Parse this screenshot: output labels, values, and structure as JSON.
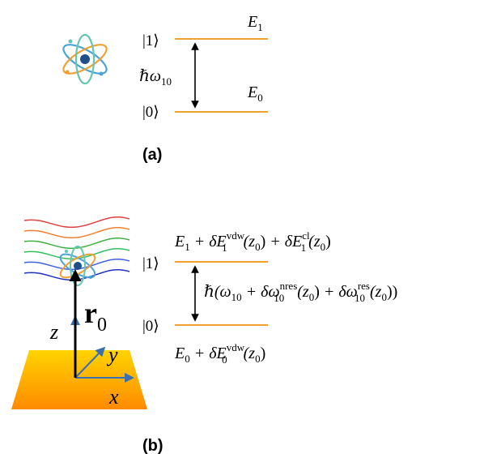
{
  "panel_a": {
    "label": "(a)",
    "ket1": "|1⟩",
    "ket0": "|0⟩",
    "energy1": "E",
    "energy1_sub": "1",
    "energy0": "E",
    "energy0_sub": "0",
    "transition": "ℏω",
    "transition_sub": "10"
  },
  "panel_b": {
    "label": "(b)",
    "ket1": "|1⟩",
    "ket0": "|0⟩",
    "upper_energy": {
      "E": "E",
      "E_sub": "1",
      "plus1": " + δE",
      "vdw_sub": "1",
      "vdw_sup": "vdw",
      "arg1": "(z",
      "arg1_sub": "0",
      "arg1_close": ")",
      "plus2": " + δE",
      "cl_sub": "1",
      "cl_sup": "cl",
      "arg2": "(z",
      "arg2_sub": "0",
      "arg2_close": ")"
    },
    "lower_energy": {
      "E": "E",
      "E_sub": "0",
      "plus": " + δE",
      "vdw_sub": "0",
      "vdw_sup": "vdw",
      "arg": "(z",
      "arg_sub": "0",
      "arg_close": ")"
    },
    "transition": {
      "hbar": "ℏ(ω",
      "w_sub": "10",
      "plus1": " + δω",
      "nres_sub": "10",
      "nres_sup": "nres",
      "arg1": "(z",
      "arg1_sub": "0",
      "arg1_close": ")",
      "plus2": " + δω",
      "res_sub": "10",
      "res_sup": "res",
      "arg2": "(z",
      "arg2_sub": "0",
      "arg2_close": "))"
    },
    "position_vector": "r",
    "position_sub": "0",
    "axis_x": "x",
    "axis_y": "y",
    "axis_z": "z"
  },
  "colors": {
    "level": "#f0a030",
    "arrow": "#000000",
    "axis": "#3a6fb0",
    "surface_top": "#ffd400",
    "surface_bottom": "#ff8a00",
    "atom_nucleus": "#1e4f8c",
    "orbit1": "#4aa3d8",
    "orbit2": "#f0a030",
    "orbit3": "#63c7b2",
    "waves": [
      "#e04040",
      "#f08030",
      "#40b040",
      "#30c060",
      "#4060e0",
      "#2030c0"
    ]
  },
  "icons": {
    "atom_a": "atom-icon",
    "atom_b": "atom-icon"
  }
}
